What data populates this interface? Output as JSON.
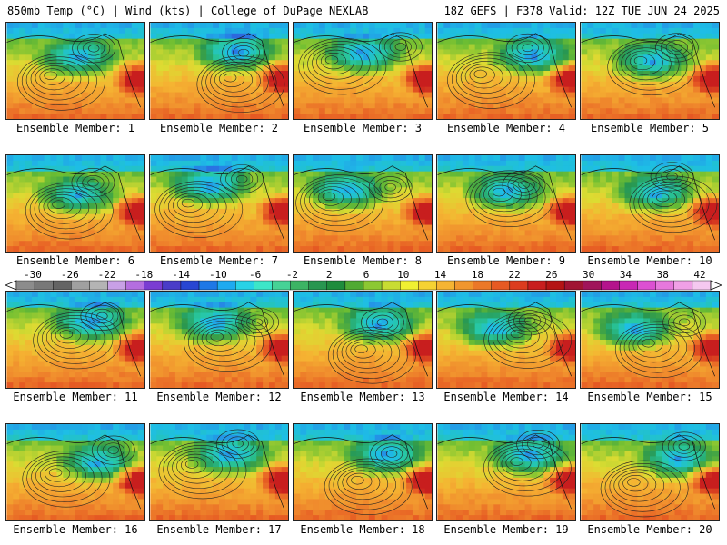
{
  "header": {
    "left": "850mb Temp (°C) | Wind (kts) | College of DuPage NEXLAB",
    "right": "18Z GEFS | F378 Valid: 12Z TUE JUN 24 2025"
  },
  "panels": [
    {
      "label": "Ensemble Member: 1"
    },
    {
      "label": "Ensemble Member: 2"
    },
    {
      "label": "Ensemble Member: 3"
    },
    {
      "label": "Ensemble Member: 4"
    },
    {
      "label": "Ensemble Member: 5"
    },
    {
      "label": "Ensemble Member: 6"
    },
    {
      "label": "Ensemble Member: 7"
    },
    {
      "label": "Ensemble Member: 8"
    },
    {
      "label": "Ensemble Member: 9"
    },
    {
      "label": "Ensemble Member: 10"
    },
    {
      "label": "Ensemble Member: 11"
    },
    {
      "label": "Ensemble Member: 12"
    },
    {
      "label": "Ensemble Member: 13"
    },
    {
      "label": "Ensemble Member: 14"
    },
    {
      "label": "Ensemble Member: 15"
    },
    {
      "label": "Ensemble Member: 16"
    },
    {
      "label": "Ensemble Member: 17"
    },
    {
      "label": "Ensemble Member: 18"
    },
    {
      "label": "Ensemble Member: 19"
    },
    {
      "label": "Ensemble Member: 20"
    }
  ],
  "colorbar": {
    "labels": [
      "-30",
      "-26",
      "-22",
      "-18",
      "-14",
      "-10",
      "-6",
      "-2",
      "2",
      "6",
      "10",
      "14",
      "18",
      "22",
      "26",
      "30",
      "34",
      "38",
      "42"
    ],
    "colors": [
      "#8c8c8c",
      "#787878",
      "#646464",
      "#a0a0a0",
      "#b4b4b4",
      "#c8a0e6",
      "#b46ee0",
      "#7a3cd2",
      "#4a3cc8",
      "#2846d2",
      "#1e78e6",
      "#1eaaf0",
      "#28d2e6",
      "#3ce6c8",
      "#46d296",
      "#3cb464",
      "#289650",
      "#1e8c3c",
      "#50aa32",
      "#8cc832",
      "#c8dc32",
      "#f0f032",
      "#f5d232",
      "#f5b432",
      "#f0962d",
      "#eb7828",
      "#e65a23",
      "#dc3c1e",
      "#c81e1e",
      "#b41414",
      "#a01432",
      "#a0145a",
      "#b4148c",
      "#c828b4",
      "#dc50d2",
      "#e678dc",
      "#f0a0e6",
      "#f5c8f0"
    ]
  }
}
